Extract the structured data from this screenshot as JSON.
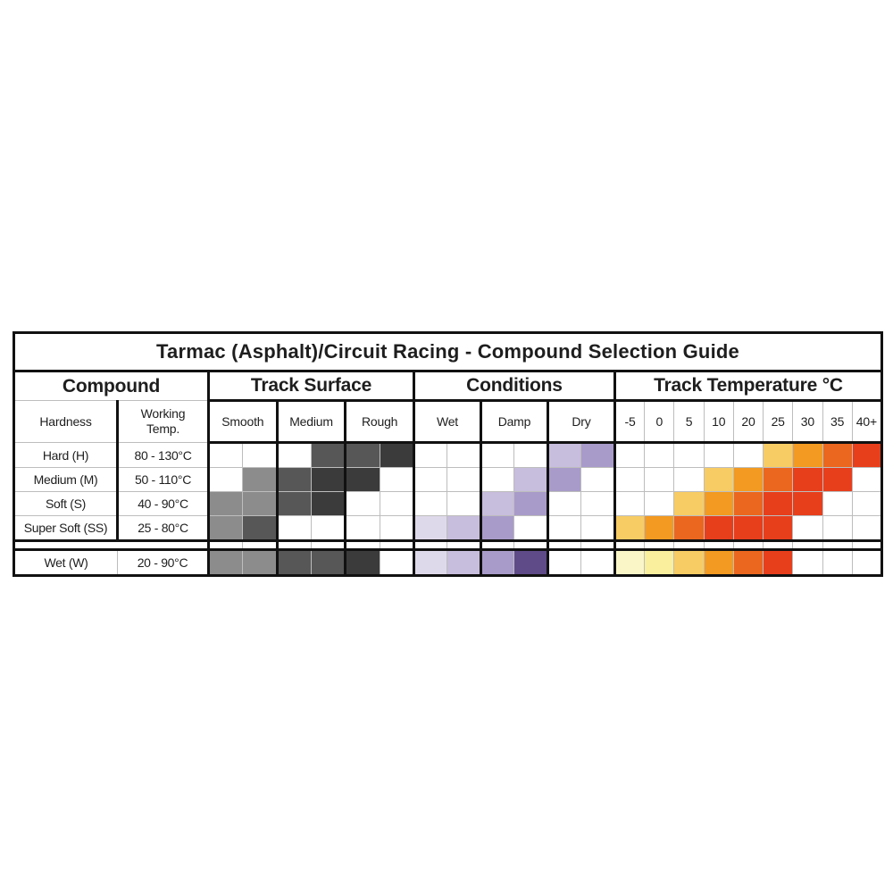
{
  "title": "Tarmac (Asphalt)/Circuit Racing - Compound Selection Guide",
  "palette": {
    "gray-light": "#8c8c8c",
    "gray-mid": "#575757",
    "gray-dark": "#3b3b3b",
    "purple-xlight": "#ded9ea",
    "purple-light": "#c7bddc",
    "purple-mid": "#a89bc9",
    "purple-dark": "#5e4b88",
    "yellow-pale": "#fbf6c8",
    "yellow-light": "#f9ef9c",
    "yellow": "#f8cc64",
    "orange": "#f29a21",
    "orange-deep": "#eb671f",
    "red": "#e73e1c"
  },
  "header": {
    "compound": {
      "label": "Compound",
      "subcolumns": [
        "Hardness",
        "Working\nTemp."
      ]
    },
    "track_surface": {
      "label": "Track Surface",
      "columns": [
        "Smooth",
        "Medium",
        "Rough"
      ]
    },
    "conditions": {
      "label": "Conditions",
      "columns": [
        "Wet",
        "Damp",
        "Dry"
      ]
    },
    "track_temperature": {
      "label": "Track Temperature °C",
      "columns": [
        "-5",
        "0",
        "5",
        "10",
        "20",
        "25",
        "30",
        "35",
        "40+"
      ]
    }
  },
  "chart_data": {
    "type": "heatmap",
    "title": "Tarmac (Asphalt)/Circuit Racing - Compound Selection Guide",
    "column_groups": [
      {
        "group": "Compound",
        "columns": [
          "Hardness",
          "Working Temp."
        ]
      },
      {
        "group": "Track Surface",
        "columns": [
          "Smooth",
          "Medium",
          "Rough"
        ],
        "half_cells_per_column": 2
      },
      {
        "group": "Conditions",
        "columns": [
          "Wet",
          "Damp",
          "Dry"
        ],
        "half_cells_per_column": 2
      },
      {
        "group": "Track Temperature °C",
        "columns": [
          "-5",
          "0",
          "5",
          "10",
          "20",
          "25",
          "30",
          "35",
          "40+"
        ]
      }
    ],
    "fill_legend": "cell fill values are palette keys; empty string means white/unfilled",
    "separator_after_row": "Super Soft (SS)",
    "rows": [
      {
        "label": "Hard (H)",
        "working_temp": "80 - 130°C",
        "track_surface": [
          "",
          "",
          "",
          "gray-mid",
          "gray-mid",
          "gray-dark"
        ],
        "conditions": [
          "",
          "",
          "",
          "",
          "purple-light",
          "purple-mid"
        ],
        "track_temperature": [
          "",
          "",
          "",
          "",
          "",
          "yellow",
          "orange",
          "orange-deep",
          "red"
        ]
      },
      {
        "label": "Medium (M)",
        "working_temp": "50 - 110°C",
        "track_surface": [
          "",
          "gray-light",
          "gray-mid",
          "gray-dark",
          "gray-dark",
          ""
        ],
        "conditions": [
          "",
          "",
          "",
          "purple-light",
          "purple-mid",
          ""
        ],
        "track_temperature": [
          "",
          "",
          "",
          "yellow",
          "orange",
          "orange-deep",
          "red",
          "red",
          ""
        ]
      },
      {
        "label": "Soft (S)",
        "working_temp": "40 - 90°C",
        "track_surface": [
          "gray-light",
          "gray-light",
          "gray-mid",
          "gray-dark",
          "",
          ""
        ],
        "conditions": [
          "",
          "",
          "purple-light",
          "purple-mid",
          "",
          ""
        ],
        "track_temperature": [
          "",
          "",
          "yellow",
          "orange",
          "orange-deep",
          "red",
          "red",
          "",
          ""
        ]
      },
      {
        "label": "Super Soft (SS)",
        "working_temp": "25 - 80°C",
        "track_surface": [
          "gray-light",
          "gray-mid",
          "",
          "",
          "",
          ""
        ],
        "conditions": [
          "purple-xlight",
          "purple-light",
          "purple-mid",
          "",
          "",
          ""
        ],
        "track_temperature": [
          "yellow",
          "orange",
          "orange-deep",
          "red",
          "red",
          "red",
          "",
          "",
          ""
        ]
      },
      {
        "label": "Wet (W)",
        "working_temp": "20 - 90°C",
        "separated": true,
        "track_surface": [
          "gray-light",
          "gray-light",
          "gray-mid",
          "gray-mid",
          "gray-dark",
          ""
        ],
        "conditions": [
          "purple-xlight",
          "purple-light",
          "purple-mid",
          "purple-dark",
          "",
          ""
        ],
        "track_temperature": [
          "yellow-pale",
          "yellow-light",
          "yellow",
          "orange",
          "orange-deep",
          "red",
          "",
          "",
          ""
        ]
      }
    ]
  }
}
